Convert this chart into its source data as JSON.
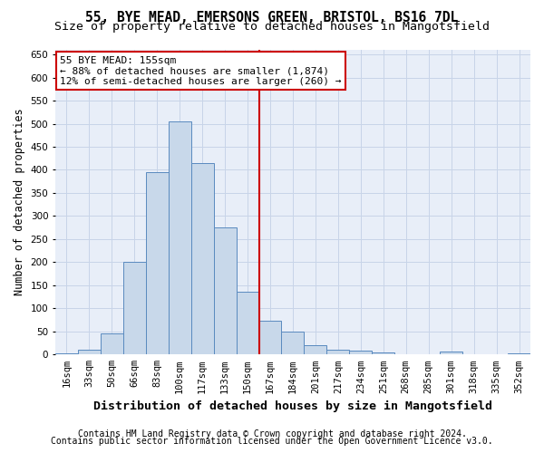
{
  "title1": "55, BYE MEAD, EMERSONS GREEN, BRISTOL, BS16 7DL",
  "title2": "Size of property relative to detached houses in Mangotsfield",
  "xlabel": "Distribution of detached houses by size in Mangotsfield",
  "ylabel": "Number of detached properties",
  "footnote1": "Contains HM Land Registry data © Crown copyright and database right 2024.",
  "footnote2": "Contains public sector information licensed under the Open Government Licence v3.0.",
  "categories": [
    "16sqm",
    "33sqm",
    "50sqm",
    "66sqm",
    "83sqm",
    "100sqm",
    "117sqm",
    "133sqm",
    "150sqm",
    "167sqm",
    "184sqm",
    "201sqm",
    "217sqm",
    "234sqm",
    "251sqm",
    "268sqm",
    "285sqm",
    "301sqm",
    "318sqm",
    "335sqm",
    "352sqm"
  ],
  "values": [
    3,
    10,
    45,
    200,
    395,
    505,
    415,
    275,
    135,
    73,
    50,
    20,
    10,
    8,
    5,
    0,
    0,
    6,
    0,
    0,
    2
  ],
  "bar_color": "#c8d8ea",
  "bar_edge_color": "#5a8abf",
  "vertical_line_x": 8.5,
  "vertical_line_color": "#cc0000",
  "annotation_line1": "55 BYE MEAD: 155sqm",
  "annotation_line2": "← 88% of detached houses are smaller (1,874)",
  "annotation_line3": "12% of semi-detached houses are larger (260) →",
  "annotation_box_color": "#cc0000",
  "ylim": [
    0,
    660
  ],
  "yticks": [
    0,
    50,
    100,
    150,
    200,
    250,
    300,
    350,
    400,
    450,
    500,
    550,
    600,
    650
  ],
  "grid_color": "#c8d4e8",
  "background_color": "#e8eef8",
  "title1_fontsize": 10.5,
  "title2_fontsize": 9.5,
  "xlabel_fontsize": 9.5,
  "ylabel_fontsize": 8.5,
  "tick_fontsize": 7.5,
  "annotation_fontsize": 8,
  "footnote_fontsize": 7
}
